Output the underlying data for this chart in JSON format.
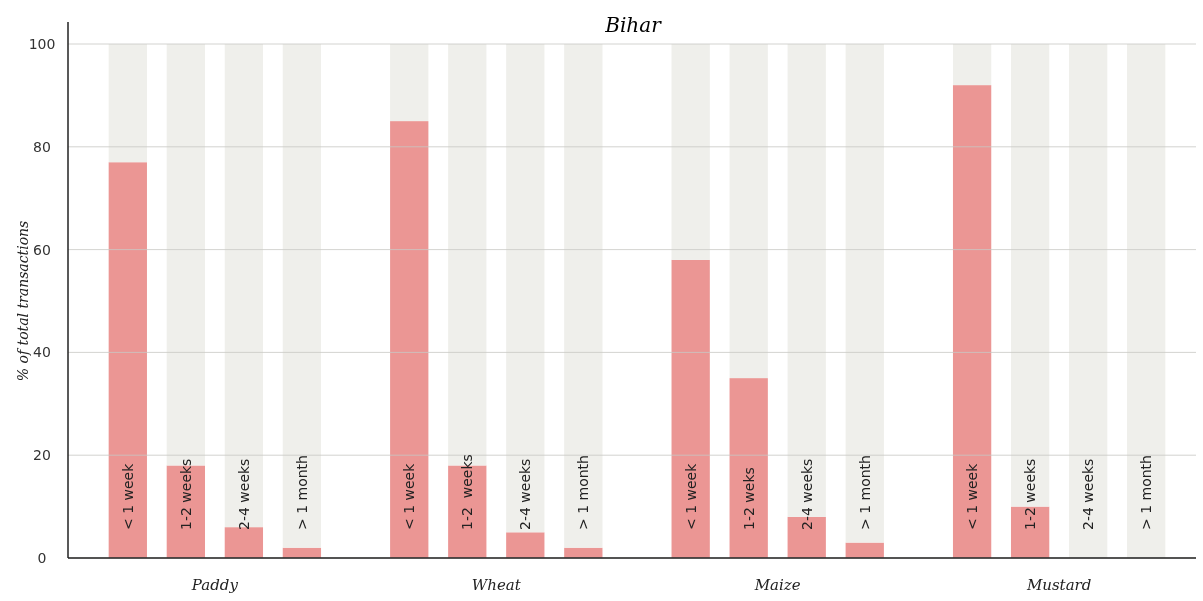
{
  "chart_data": {
    "type": "bar",
    "title": "Bihar",
    "ylabel": "% of total transactions",
    "categories": [
      "< 1 week",
      "1-2 weeks",
      "2-4 weeks",
      "> 1 month",
      "< 1 week",
      "1-2  weeks",
      "2-4 weeks",
      "> 1 month",
      "< 1 week",
      "1-2 weks",
      "2-4 weeks",
      "> 1 month",
      "< 1 week",
      "1-2 weeks",
      "2-4 weeks",
      "> 1 month"
    ],
    "stacked": true,
    "series": [
      {
        "color": "#eb9694",
        "values": [
          77,
          18,
          6,
          2,
          85,
          18,
          5,
          2,
          58,
          35,
          8,
          3,
          92,
          10,
          0,
          0
        ]
      },
      {
        "color": "#efefeb",
        "values": [
          23,
          82,
          94,
          98,
          15,
          82,
          95,
          98,
          42,
          65,
          92,
          97,
          8,
          90,
          100,
          100
        ]
      }
    ],
    "ylim": [
      0,
      100
    ],
    "yticks": [
      0,
      20,
      40,
      60,
      80,
      100
    ],
    "grid": "y",
    "annotations": [
      "Paddy",
      "Wheat",
      "Maize",
      "Mustard"
    ]
  }
}
